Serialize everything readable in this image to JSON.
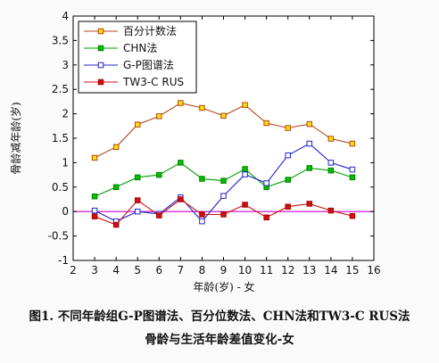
{
  "chart_data": {
    "type": "line",
    "xlabel": "年龄(岁) - 女",
    "ylabel": "骨龄减年龄(岁)",
    "xlim": [
      2,
      16
    ],
    "ylim": [
      -1,
      4
    ],
    "xticks": [
      "2",
      "3",
      "4",
      "5",
      "6",
      "7",
      "8",
      "9",
      "10",
      "11",
      "12",
      "13",
      "14",
      "15",
      "16"
    ],
    "yticks": [
      "-1",
      "-0.5",
      "0",
      "0.5",
      "1",
      "1.5",
      "2",
      "2.5",
      "3",
      "3.5",
      "4"
    ],
    "legend_position": "top-left",
    "x": [
      3,
      4,
      5,
      6,
      7,
      8,
      9,
      10,
      11,
      12,
      13,
      14,
      15
    ],
    "reference_line": {
      "y": 0,
      "color": "#cc00cc"
    },
    "series": [
      {
        "name": "百分计数法",
        "color": "#b5451b",
        "marker": "square-open-yellow",
        "values": [
          1.1,
          1.32,
          1.78,
          1.95,
          2.22,
          2.12,
          1.96,
          2.18,
          1.81,
          1.71,
          1.79,
          1.49,
          1.39
        ]
      },
      {
        "name": "CHN法",
        "color": "#00a000",
        "marker": "square-filled-green",
        "values": [
          0.31,
          0.5,
          0.7,
          0.75,
          1.0,
          0.67,
          0.63,
          0.87,
          0.5,
          0.65,
          0.89,
          0.84,
          0.7
        ]
      },
      {
        "name": "G-P图谱法",
        "color": "#2222cc",
        "marker": "square-open-blue",
        "values": [
          0.02,
          -0.2,
          0.0,
          -0.05,
          0.29,
          -0.2,
          0.32,
          0.76,
          0.58,
          1.15,
          1.39,
          1.0,
          0.86
        ]
      },
      {
        "name": "TW3-C RUS",
        "color": "#cc1111",
        "marker": "square-filled-red",
        "values": [
          -0.1,
          -0.27,
          0.23,
          -0.08,
          0.25,
          -0.06,
          -0.06,
          0.14,
          -0.12,
          0.1,
          0.16,
          0.02,
          -0.09
        ]
      }
    ]
  },
  "caption": {
    "line1": "图1. 不同年龄组G-P图谱法、百分位数法、CHN法和TW3-C RUS法",
    "line2": "骨龄与生活年龄差值变化-女"
  }
}
